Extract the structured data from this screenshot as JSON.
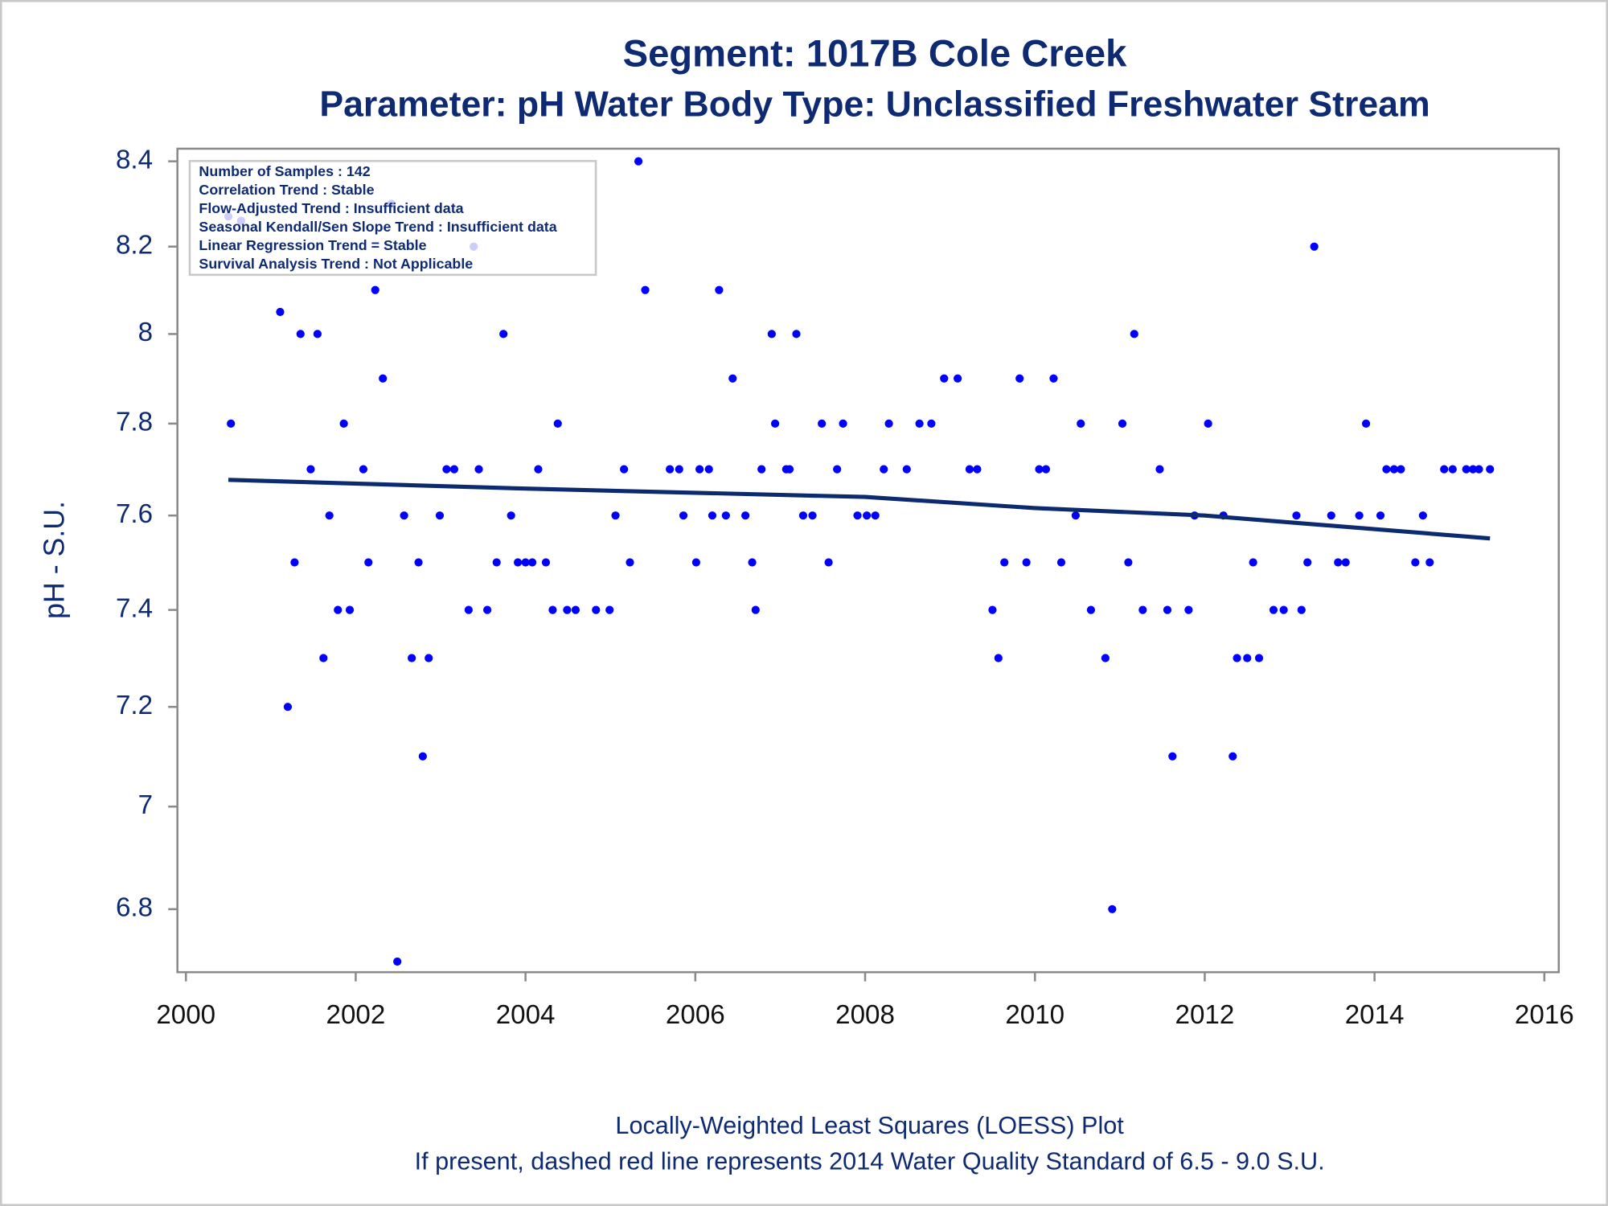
{
  "chart_data": {
    "type": "scatter",
    "title": "Segment: 1017B  Cole Creek",
    "subtitle": "Parameter: pH   Water Body Type: Unclassified Freshwater Stream",
    "y_label": "pH - S.U.",
    "info_box": [
      "Number of Samples : 142",
      "Correlation Trend : Stable",
      "Flow-Adjusted Trend : Insufficient data",
      "Seasonal Kendall/Sen Slope Trend : Insufficient data",
      "Linear Regression Trend = Stable",
      "Survival Analysis Trend : Not Applicable"
    ],
    "footnotes": [
      "Locally-Weighted Least Squares (LOESS) Plot",
      "If present, dashed red line represents 2014 Water Quality Standard of 6.5 - 9.0 S.U."
    ],
    "xlim": [
      1999.9,
      2016.17
    ],
    "xticks": [
      2000,
      2002,
      2004,
      2006,
      2008,
      2010,
      2012,
      2014,
      2016
    ],
    "ylim": [
      6.68,
      8.43
    ],
    "yticks": [
      6.8,
      7,
      7.2,
      7.4,
      7.6,
      7.8,
      8,
      8.2,
      8.4
    ],
    "yscale": "log",
    "series": [
      {
        "mode": "markers",
        "color": "#0000ff",
        "x": [
          2000.5,
          2000.53,
          2000.65,
          2001.11,
          2001.2,
          2001.28,
          2001.35,
          2001.47,
          2001.55,
          2001.62,
          2001.69,
          2001.79,
          2001.86,
          2001.93,
          2002.09,
          2002.15,
          2002.23,
          2002.32,
          2002.42,
          2002.49,
          2002.57,
          2002.66,
          2002.74,
          2002.79,
          2002.86,
          2002.99,
          2003.07,
          2003.16,
          2003.33,
          2003.39,
          2003.45,
          2003.55,
          2003.66,
          2003.74,
          2003.83,
          2003.91,
          2004.0,
          2004.08,
          2004.15,
          2004.24,
          2004.32,
          2004.38,
          2004.49,
          2004.59,
          2004.83,
          2004.99,
          2005.06,
          2005.16,
          2005.23,
          2005.33,
          2005.41,
          2005.7,
          2005.81,
          2005.86,
          2006.01,
          2006.05,
          2006.16,
          2006.2,
          2006.28,
          2006.36,
          2006.44,
          2006.59,
          2006.67,
          2006.71,
          2006.78,
          2006.9,
          2006.94,
          2007.07,
          2007.11,
          2007.19,
          2007.27,
          2007.38,
          2007.49,
          2007.57,
          2007.67,
          2007.74,
          2007.91,
          2008.02,
          2008.12,
          2008.22,
          2008.28,
          2008.49,
          2008.64,
          2008.78,
          2008.93,
          2009.09,
          2009.23,
          2009.32,
          2009.5,
          2009.57,
          2009.64,
          2009.82,
          2009.9,
          2010.05,
          2010.13,
          2010.22,
          2010.31,
          2010.48,
          2010.54,
          2010.66,
          2010.83,
          2010.91,
          2011.03,
          2011.1,
          2011.17,
          2011.27,
          2011.47,
          2011.56,
          2011.62,
          2011.81,
          2011.88,
          2012.04,
          2012.22,
          2012.33,
          2012.38,
          2012.5,
          2012.57,
          2012.64,
          2012.81,
          2012.93,
          2013.08,
          2013.14,
          2013.21,
          2013.29,
          2013.49,
          2013.57,
          2013.66,
          2013.82,
          2013.9,
          2014.07,
          2014.14,
          2014.23,
          2014.31,
          2014.48,
          2014.57,
          2014.65,
          2014.82,
          2014.92,
          2015.08,
          2015.16,
          2015.23,
          2015.36
        ],
        "values": [
          8.27,
          7.8,
          8.26,
          8.05,
          7.2,
          7.5,
          8.0,
          7.7,
          8.0,
          7.3,
          7.6,
          7.4,
          7.8,
          7.4,
          7.7,
          7.5,
          8.1,
          7.9,
          8.3,
          6.7,
          7.6,
          7.3,
          7.5,
          7.1,
          7.3,
          7.6,
          7.7,
          7.7,
          7.4,
          8.2,
          7.7,
          7.4,
          7.5,
          8.0,
          7.6,
          7.5,
          7.5,
          7.5,
          7.7,
          7.5,
          7.4,
          7.8,
          7.4,
          7.4,
          7.4,
          7.4,
          7.6,
          7.7,
          7.5,
          8.4,
          8.1,
          7.7,
          7.7,
          7.6,
          7.5,
          7.7,
          7.7,
          7.6,
          8.1,
          7.6,
          7.9,
          7.6,
          7.5,
          7.4,
          7.7,
          8.0,
          7.8,
          7.7,
          7.7,
          8.0,
          7.6,
          7.6,
          7.8,
          7.5,
          7.7,
          7.8,
          7.6,
          7.6,
          7.6,
          7.7,
          7.8,
          7.7,
          7.8,
          7.8,
          7.9,
          7.9,
          7.7,
          7.7,
          7.4,
          7.3,
          7.5,
          7.9,
          7.5,
          7.7,
          7.7,
          7.9,
          7.5,
          7.6,
          7.8,
          7.4,
          7.3,
          6.8,
          7.8,
          7.5,
          8.0,
          7.4,
          7.7,
          7.4,
          7.1,
          7.4,
          7.6,
          7.8,
          7.6,
          7.1,
          7.3,
          7.3,
          7.5,
          7.3,
          7.4,
          7.4,
          7.6,
          7.4,
          7.5,
          8.2,
          7.6,
          7.5,
          7.5,
          7.6,
          7.8,
          7.6,
          7.7,
          7.7,
          7.7,
          7.5,
          7.6,
          7.5,
          7.7,
          7.7,
          7.7,
          7.7,
          7.7,
          7.7
        ]
      },
      {
        "mode": "line",
        "color": "#0b2a70",
        "x": [
          2000.5,
          2004,
          2008,
          2010,
          2012,
          2015.36
        ],
        "values": [
          7.677,
          7.658,
          7.64,
          7.616,
          7.6,
          7.551
        ]
      }
    ]
  }
}
